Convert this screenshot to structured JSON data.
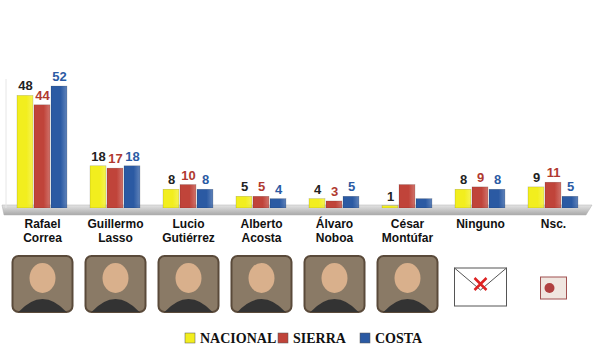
{
  "chart_data": {
    "type": "bar",
    "categories": [
      "Rafael Correa",
      "Guillermo Lasso",
      "Lucio Gutiérrez",
      "Alberto Acosta",
      "Álvaro Noboa",
      "César Montúfar",
      "Ninguno",
      "Nsc."
    ],
    "series": [
      {
        "name": "NACIONAL",
        "color": "#f2ee1e",
        "values": [
          48,
          18,
          8,
          5,
          4,
          1,
          8,
          9
        ]
      },
      {
        "name": "SIERRA",
        "color": "#c0443a",
        "values": [
          44,
          17,
          10,
          5,
          3,
          10,
          9,
          11
        ],
        "value_labels": [
          "44",
          "17",
          "10",
          "5",
          "3",
          null,
          "9",
          "11"
        ]
      },
      {
        "name": "COSTA",
        "color": "#2b5aa3",
        "values": [
          52,
          18,
          8,
          4,
          5,
          4,
          8,
          5
        ],
        "value_labels": [
          "52",
          "18",
          "8",
          "4",
          "5",
          null,
          "8",
          "5"
        ]
      }
    ],
    "ylim": [
      0,
      55
    ],
    "yticks": [],
    "data_labels": true,
    "tick_labels": "x",
    "legend": "bottom"
  }
}
